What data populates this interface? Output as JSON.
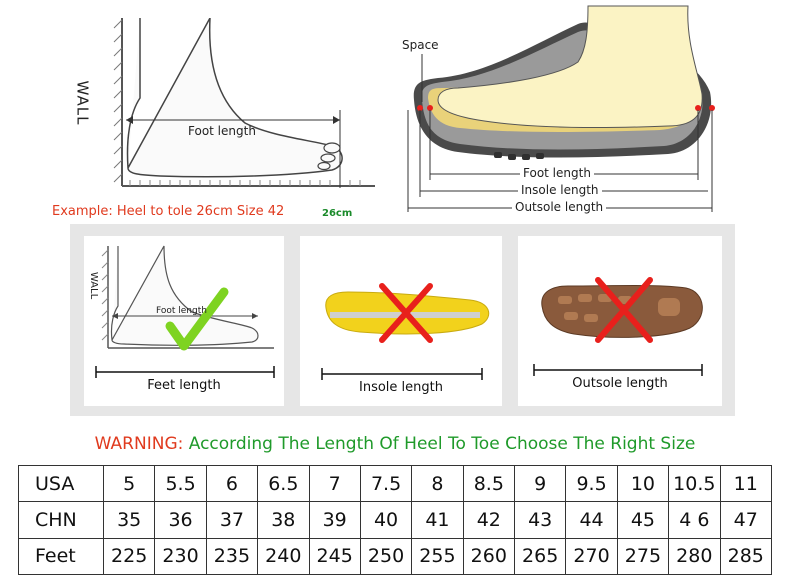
{
  "top_left": {
    "wall_label": "WALL",
    "foot_length_label": "Foot length",
    "example_text": "Example: Heel to tole 26cm Size 42",
    "cm_label": "26cm"
  },
  "top_right": {
    "space_label": "Space",
    "foot_length": "Foot length",
    "insole_length": "Insole length",
    "outsole_length": "Outsole length"
  },
  "panels": [
    {
      "wall_label": "WALL",
      "inner_label": "Foot length",
      "caption": "Feet length",
      "mark": "check"
    },
    {
      "caption": "Insole length",
      "mark": "cross"
    },
    {
      "caption": "Outsole length",
      "mark": "cross"
    }
  ],
  "warning": {
    "prefix": "WARNING:",
    "text": "According The Length Of Heel To Toe Choose The Right Size"
  },
  "size_table": {
    "rows": [
      {
        "label": "USA",
        "values": [
          "5",
          "5.5",
          "6",
          "6.5",
          "7",
          "7.5",
          "8",
          "8.5",
          "9",
          "9.5",
          "10",
          "10.5",
          "11"
        ]
      },
      {
        "label": "CHN",
        "values": [
          "35",
          "36",
          "37",
          "38",
          "39",
          "40",
          "41",
          "42",
          "43",
          "44",
          "45",
          "4 6",
          "47"
        ]
      },
      {
        "label": "Feet",
        "values": [
          "225",
          "230",
          "235",
          "240",
          "245",
          "250",
          "255",
          "260",
          "265",
          "270",
          "275",
          "280",
          "285"
        ]
      }
    ]
  },
  "colors": {
    "check": "#7ed321",
    "cross": "#e8201c",
    "warning_red": "#e03a1e",
    "warning_green": "#1f9a2a",
    "insole_yellow": "#f2d21c",
    "outsole_brown": "#8a5a3c",
    "panel_bg": "#e6e6e6"
  }
}
